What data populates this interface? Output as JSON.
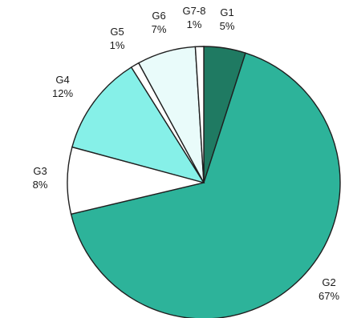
{
  "chart_data": {
    "type": "pie",
    "slices": [
      {
        "name": "G1",
        "value": 5,
        "label": "5%",
        "color": "#1f7a62"
      },
      {
        "name": "G2",
        "value": 67,
        "label": "67%",
        "color": "#2db39a"
      },
      {
        "name": "G3",
        "value": 8,
        "label": "8%",
        "color": "#ffffff"
      },
      {
        "name": "G4",
        "value": 12,
        "label": "12%",
        "color": "#86f0e8"
      },
      {
        "name": "G5",
        "value": 1,
        "label": "1%",
        "color": "#ffffff"
      },
      {
        "name": "G6",
        "value": 7,
        "label": "7%",
        "color": "#e9fbfa"
      },
      {
        "name": "G7-8",
        "value": 1,
        "label": "1%",
        "color": "#ffffff"
      }
    ]
  }
}
